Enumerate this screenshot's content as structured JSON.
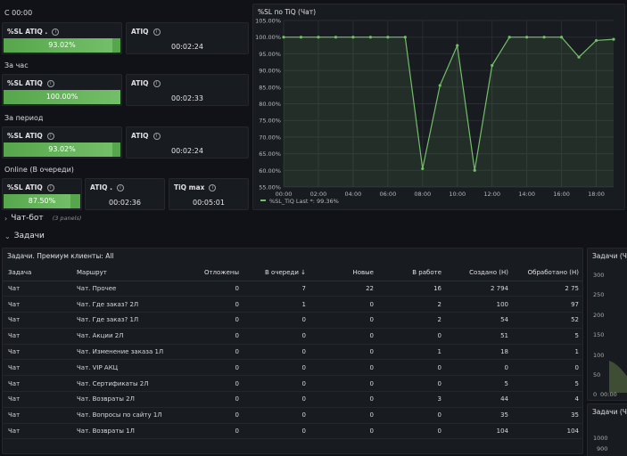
{
  "sections": {
    "s0000": "С 00:00",
    "hour": "За час",
    "period": "За период",
    "online": "Online (В очереди)"
  },
  "stats": {
    "r1_sl": {
      "title": "%SL ATIQ .",
      "value": "93.02%",
      "fill": 0.9302
    },
    "r1_atiq": {
      "title": "ATIQ",
      "value": "00:02:24"
    },
    "r2_sl": {
      "title": "%SL ATIQ",
      "value": "100.00%",
      "fill": 1.0
    },
    "r2_atiq": {
      "title": "ATIQ",
      "value": "00:02:33"
    },
    "r3_sl": {
      "title": "%SL ATIQ",
      "value": "93.02%",
      "fill": 0.9302
    },
    "r3_atiq": {
      "title": "ATIQ",
      "value": "00:02:24"
    },
    "r4_sl": {
      "title": "%SL ATIQ",
      "value": "87.50%",
      "fill": 0.875
    },
    "r4_atiq": {
      "title": "ATIQ .",
      "value": "00:02:36"
    },
    "r4_tiqmax": {
      "title": "TiQ max",
      "value": "00:05:01"
    }
  },
  "rows": {
    "chatbot": {
      "label": "Чат-бот",
      "sub": "(3 panels)"
    },
    "tasks": {
      "label": "Задачи"
    }
  },
  "table": {
    "title": "Задачи. Премиум клиенты: All",
    "headers": [
      "Задача",
      "Маршрут",
      "Отложены",
      "В очереди ↓",
      "Новые",
      "В работе",
      "Создано (Н)",
      "Обработано (Н)"
    ],
    "rows": [
      [
        "Чат",
        "Чат. Прочее",
        "0",
        "7",
        "22",
        "16",
        "2 794",
        "2 75"
      ],
      [
        "Чат",
        "Чат. Где заказ? 2Л",
        "0",
        "1",
        "0",
        "2",
        "100",
        "97"
      ],
      [
        "Чат",
        "Чат. Где заказ? 1Л",
        "0",
        "0",
        "0",
        "2",
        "54",
        "52"
      ],
      [
        "Чат",
        "Чат. Акции 2Л",
        "0",
        "0",
        "0",
        "0",
        "51",
        "5"
      ],
      [
        "Чат",
        "Чат. Изменение заказа 1Л",
        "0",
        "0",
        "0",
        "1",
        "18",
        "1"
      ],
      [
        "Чат",
        "Чат. VIP АКЦ",
        "0",
        "0",
        "0",
        "0",
        "0",
        "0"
      ],
      [
        "Чат",
        "Чат. Сертификаты 2Л",
        "0",
        "0",
        "0",
        "0",
        "5",
        "5"
      ],
      [
        "Чат",
        "Чат. Возвраты 2Л",
        "0",
        "0",
        "0",
        "3",
        "44",
        "4"
      ],
      [
        "Чат",
        "Чат. Вопросы по сайту 1Л",
        "0",
        "0",
        "0",
        "0",
        "35",
        "35"
      ],
      [
        "Чат",
        "Чат. Возвраты 1Л",
        "0",
        "0",
        "0",
        "0",
        "104",
        "104"
      ]
    ]
  },
  "side_panels": {
    "p1_title": "Задачи (Ча",
    "p1_ticks": [
      "300",
      "250",
      "200",
      "150",
      "100",
      "50",
      "0"
    ],
    "p1_xtick": "00:00",
    "p2_title": "Задачи (Ча",
    "p2_ticks": [
      "1000",
      "900"
    ]
  },
  "chart_data": {
    "type": "line",
    "title": "%SL по TiQ (Чат)",
    "x": [
      "00:00",
      "01:00",
      "02:00",
      "03:00",
      "04:00",
      "05:00",
      "06:00",
      "07:00",
      "08:00",
      "09:00",
      "10:00",
      "11:00",
      "12:00",
      "13:00",
      "14:00",
      "15:00",
      "16:00",
      "17:00",
      "18:00",
      "19:00"
    ],
    "series": [
      {
        "name": "%SL_TiQ",
        "values": [
          100,
          100,
          100,
          100,
          100,
          100,
          100,
          100,
          60.5,
          85.5,
          97.5,
          60,
          91.5,
          100,
          100,
          100,
          100,
          94,
          99,
          99.36
        ],
        "color": "#73bf69"
      }
    ],
    "x_tick_labels": [
      "00:00",
      "02:00",
      "04:00",
      "06:00",
      "08:00",
      "10:00",
      "12:00",
      "14:00",
      "16:00",
      "18:00"
    ],
    "y_tick_labels": [
      "55.00%",
      "60.00%",
      "65.00%",
      "70.00%",
      "75.00%",
      "80.00%",
      "85.00%",
      "90.00%",
      "95.00%",
      "100.00%",
      "105.00%"
    ],
    "ylim": [
      55,
      105
    ],
    "legend": "%SL_TiQ   Last *: 99.36%",
    "grid": true
  }
}
